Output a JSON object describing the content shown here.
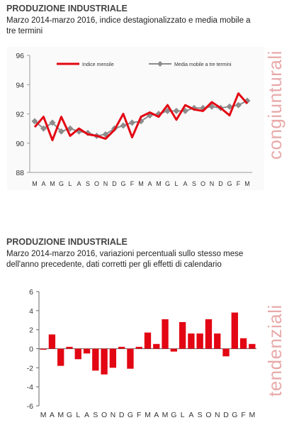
{
  "charts": [
    {
      "title": "PRODUZIONE INDUSTRIALE",
      "subtitle": "Marzo 2014-marzo 2016, indice destagionalizzato e media mobile a tre termini",
      "side_label": "congiunturali"
    },
    {
      "title": "PRODUZIONE INDUSTRIALE",
      "subtitle": "Marzo 2014-marzo 2016, variazioni percentuali sullo stesso mese dell'anno precedente, dati corretti per gli effetti di calendario",
      "side_label": "tendenziali"
    }
  ],
  "colors": {
    "red": "#e30613",
    "gray": "#8c8c8c",
    "side": "#e8a9a9"
  },
  "chart_data": [
    {
      "type": "line",
      "categories": [
        "M",
        "A",
        "M",
        "G",
        "L",
        "A",
        "S",
        "O",
        "N",
        "D",
        "G",
        "F",
        "M",
        "A",
        "M",
        "G",
        "L",
        "A",
        "S",
        "O",
        "N",
        "D",
        "G",
        "F",
        "M"
      ],
      "series": [
        {
          "name": "Indice mensile",
          "color": "#e30613",
          "values": [
            91.1,
            91.8,
            90.2,
            91.8,
            90.5,
            91.0,
            90.6,
            90.5,
            90.3,
            90.9,
            92.0,
            90.4,
            91.8,
            92.1,
            91.8,
            92.6,
            91.6,
            92.6,
            92.3,
            92.2,
            92.8,
            92.4,
            91.9,
            93.4,
            92.7
          ]
        },
        {
          "name": "Media mobile a tre termini",
          "color": "#8c8c8c",
          "marker": "diamond",
          "values": [
            91.5,
            91.0,
            91.4,
            90.8,
            91.0,
            90.8,
            90.7,
            90.5,
            90.6,
            91.0,
            91.2,
            91.4,
            91.5,
            91.9,
            92.0,
            92.2,
            92.2,
            92.2,
            92.4,
            92.4,
            92.5,
            92.4,
            92.5,
            92.6,
            92.9
          ]
        }
      ],
      "ylim": [
        88,
        96
      ],
      "yticks": [
        88,
        90,
        92,
        94,
        96
      ],
      "grid": false,
      "legend": "top"
    },
    {
      "type": "bar",
      "categories": [
        "M",
        "A",
        "M",
        "G",
        "L",
        "A",
        "S",
        "O",
        "N",
        "D",
        "G",
        "F",
        "M",
        "A",
        "M",
        "G",
        "L",
        "A",
        "S",
        "O",
        "N",
        "D",
        "G",
        "F",
        "M"
      ],
      "series": [
        {
          "name": "",
          "color": "#e30613",
          "values": [
            -0.1,
            1.5,
            -1.8,
            0.2,
            -1.1,
            -0.5,
            -2.3,
            -2.7,
            -2.0,
            0.2,
            -2.1,
            0.2,
            1.7,
            0.5,
            3.1,
            -0.3,
            2.8,
            1.6,
            1.6,
            3.1,
            1.6,
            -0.8,
            3.8,
            1.1,
            0.5
          ]
        }
      ],
      "ylim": [
        -6,
        6
      ],
      "yticks": [
        -6,
        -4,
        -2,
        0,
        2,
        4,
        6
      ],
      "grid": false
    }
  ]
}
